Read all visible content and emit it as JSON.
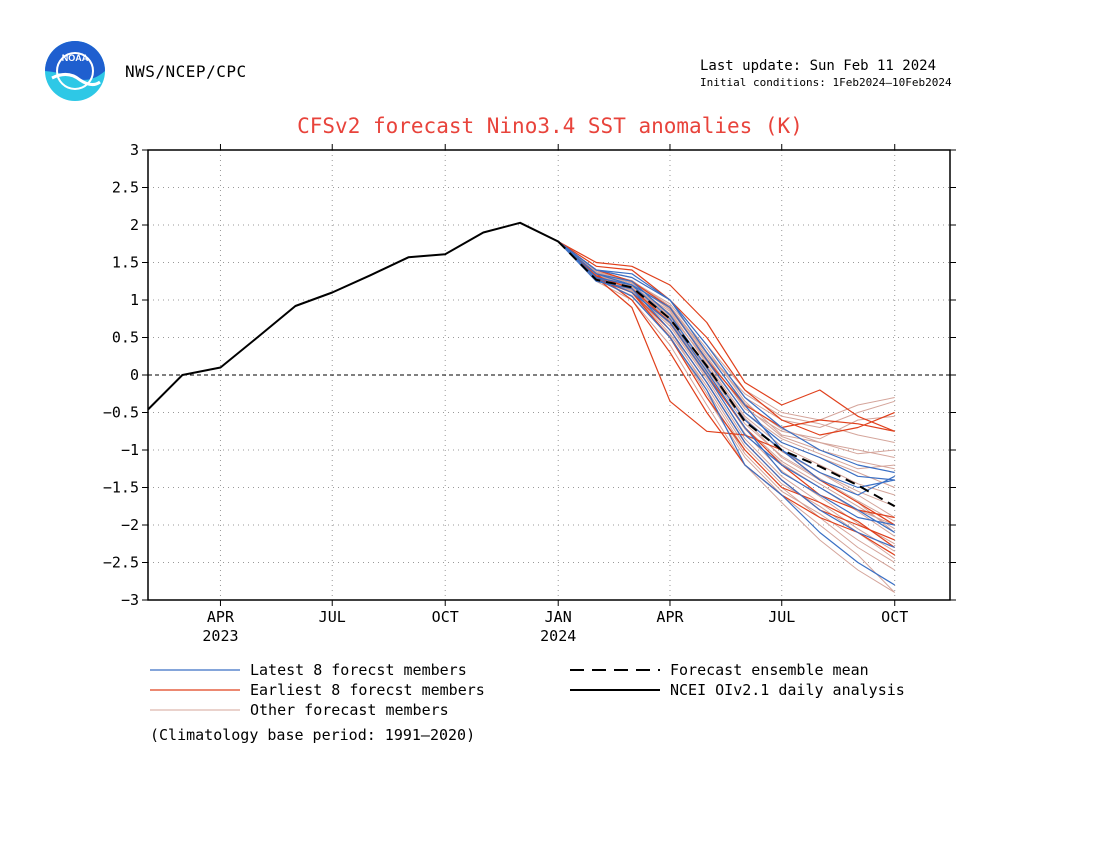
{
  "header": {
    "agency": "NWS/NCEP/CPC",
    "last_update": "Last update: Sun Feb 11 2024",
    "initial_conditions": "Initial conditions: 1Feb2024–10Feb2024",
    "logo_text": "NOAA"
  },
  "footnote": "(Climatology base period: 1991—2020)",
  "colors": {
    "title": "#e8433b",
    "latest": "#3a6fc4",
    "earliest": "#e0401c",
    "other": "#d4a49a",
    "analysis": "#000000",
    "mean": "#000000",
    "logo_blue": "#1f5fcf",
    "logo_cyan": "#2ec8e6"
  },
  "chart_data": {
    "type": "line",
    "title": "CFSv2 forecast Nino3.4 SST anomalies (K)",
    "ylim": [
      -3,
      3
    ],
    "yticks": [
      "3",
      "2.5",
      "2",
      "1.5",
      "1",
      "0.5",
      "0",
      "−0.5",
      "−1",
      "−1.5",
      "−2",
      "−2.5",
      "−3"
    ],
    "ytick_values": [
      3,
      2.5,
      2,
      1.5,
      1,
      0.5,
      0,
      -0.5,
      -1,
      -1.5,
      -2,
      -2.5,
      -3
    ],
    "xlim": [
      "2023-02-01",
      "2024-11-15"
    ],
    "xticks": [
      {
        "date": "2023-04-01",
        "label": "APR",
        "sublabel": "2023"
      },
      {
        "date": "2023-07-01",
        "label": "JUL",
        "sublabel": ""
      },
      {
        "date": "2023-10-01",
        "label": "OCT",
        "sublabel": ""
      },
      {
        "date": "2024-01-01",
        "label": "JAN",
        "sublabel": "2024"
      },
      {
        "date": "2024-04-01",
        "label": "APR",
        "sublabel": ""
      },
      {
        "date": "2024-07-01",
        "label": "JUL",
        "sublabel": ""
      },
      {
        "date": "2024-10-01",
        "label": "OCT",
        "sublabel": ""
      }
    ],
    "grid": true,
    "zero_line": true,
    "legend": [
      {
        "label": "Latest 8 forecst members",
        "style": "latest"
      },
      {
        "label": "Forecast ensemble mean",
        "style": "mean"
      },
      {
        "label": "Earliest 8 forecst members",
        "style": "earliest"
      },
      {
        "label": "NCEI OIv2.1 daily analysis",
        "style": "analysis"
      },
      {
        "label": "Other forecast members",
        "style": "other"
      }
    ],
    "analysis": {
      "name": "NCEI OIv2.1 daily analysis",
      "x": [
        "2023-02-01",
        "2023-03-01",
        "2023-04-01",
        "2023-05-01",
        "2023-06-01",
        "2023-07-01",
        "2023-08-01",
        "2023-09-01",
        "2023-10-01",
        "2023-11-01",
        "2023-12-01",
        "2024-01-01"
      ],
      "y": [
        -0.46,
        0.0,
        0.1,
        0.5,
        0.92,
        1.1,
        1.33,
        1.57,
        1.61,
        1.9,
        2.03,
        1.78
      ]
    },
    "forecast_x": [
      "2024-01-01",
      "2024-02-01",
      "2024-03-01",
      "2024-04-01",
      "2024-05-01",
      "2024-06-01",
      "2024-07-01",
      "2024-08-01",
      "2024-09-01",
      "2024-10-01"
    ],
    "mean": {
      "name": "Forecast ensemble mean",
      "y": [
        1.78,
        1.27,
        1.17,
        0.75,
        0.12,
        -0.62,
        -1.0,
        -1.22,
        -1.47,
        -1.75
      ]
    },
    "latest": [
      [
        1.78,
        1.35,
        1.2,
        0.9,
        0.2,
        -0.5,
        -0.9,
        -1.1,
        -1.35,
        -1.4
      ],
      [
        1.78,
        1.4,
        1.3,
        1.0,
        0.4,
        -0.3,
        -0.7,
        -1.0,
        -1.2,
        -1.3
      ],
      [
        1.78,
        1.3,
        1.1,
        0.7,
        0.0,
        -0.8,
        -1.2,
        -1.5,
        -1.8,
        -2.1
      ],
      [
        1.78,
        1.25,
        1.15,
        0.6,
        -0.1,
        -0.9,
        -1.4,
        -1.8,
        -2.1,
        -2.3
      ],
      [
        1.78,
        1.35,
        1.25,
        0.8,
        0.1,
        -0.6,
        -1.0,
        -1.3,
        -1.5,
        -1.4
      ],
      [
        1.78,
        1.3,
        1.2,
        0.75,
        0.05,
        -0.7,
        -1.3,
        -1.6,
        -1.9,
        -2.0
      ],
      [
        1.78,
        1.28,
        1.05,
        0.5,
        -0.2,
        -1.2,
        -1.6,
        -2.1,
        -2.5,
        -2.8
      ],
      [
        1.78,
        1.4,
        1.35,
        1.0,
        0.3,
        -0.4,
        -1.0,
        -1.4,
        -1.6,
        -1.35
      ]
    ],
    "earliest": [
      [
        1.78,
        1.5,
        1.45,
        1.2,
        0.7,
        -0.1,
        -0.4,
        -0.2,
        -0.55,
        -0.75
      ],
      [
        1.78,
        1.45,
        1.4,
        1.0,
        0.5,
        -0.2,
        -0.6,
        -0.8,
        -0.7,
        -0.5
      ],
      [
        1.78,
        1.3,
        0.9,
        -0.35,
        -0.75,
        -0.8,
        -1.0,
        -1.4,
        -1.7,
        -2.0
      ],
      [
        1.78,
        1.35,
        1.0,
        0.3,
        -0.5,
        -1.2,
        -1.6,
        -1.9,
        -2.1,
        -2.4
      ],
      [
        1.78,
        1.28,
        1.1,
        0.6,
        -0.1,
        -0.9,
        -1.4,
        -1.8,
        -2.0,
        -2.2
      ],
      [
        1.78,
        1.3,
        1.1,
        0.5,
        -0.3,
        -1.0,
        -1.5,
        -1.7,
        -1.95,
        -2.3
      ],
      [
        1.78,
        1.32,
        1.15,
        0.7,
        0.0,
        -0.7,
        -1.2,
        -1.6,
        -1.8,
        -1.9
      ],
      [
        1.78,
        1.4,
        1.25,
        0.9,
        0.2,
        -0.4,
        -0.7,
        -0.6,
        -0.65,
        -0.75
      ]
    ],
    "other": [
      [
        1.78,
        1.35,
        1.2,
        0.8,
        0.1,
        -0.6,
        -1.0,
        -1.3,
        -1.6,
        -1.9
      ],
      [
        1.78,
        1.3,
        1.15,
        0.7,
        0.0,
        -0.8,
        -1.2,
        -1.5,
        -1.8,
        -2.0
      ],
      [
        1.78,
        1.28,
        1.1,
        0.6,
        -0.2,
        -1.0,
        -1.5,
        -1.9,
        -2.3,
        -2.6
      ],
      [
        1.78,
        1.32,
        1.2,
        0.9,
        0.3,
        -0.3,
        -0.6,
        -0.7,
        -0.5,
        -0.35
      ],
      [
        1.78,
        1.4,
        1.3,
        1.0,
        0.4,
        -0.2,
        -0.5,
        -0.6,
        -0.4,
        -0.3
      ],
      [
        1.78,
        1.3,
        1.05,
        0.5,
        -0.3,
        -1.1,
        -1.6,
        -2.0,
        -2.4,
        -2.9
      ],
      [
        1.78,
        1.35,
        1.2,
        0.8,
        0.2,
        -0.5,
        -0.9,
        -1.1,
        -1.3,
        -1.5
      ],
      [
        1.78,
        1.25,
        1.0,
        0.4,
        -0.4,
        -1.2,
        -1.7,
        -2.2,
        -2.6,
        -2.9
      ],
      [
        1.78,
        1.3,
        1.15,
        0.75,
        0.1,
        -0.6,
        -1.1,
        -1.4,
        -1.7,
        -2.1
      ],
      [
        1.78,
        1.38,
        1.25,
        0.95,
        0.35,
        -0.35,
        -0.8,
        -0.9,
        -1.0,
        -1.1
      ],
      [
        1.78,
        1.33,
        1.18,
        0.85,
        0.15,
        -0.55,
        -0.95,
        -1.2,
        -1.45,
        -1.6
      ],
      [
        1.78,
        1.29,
        1.12,
        0.65,
        -0.05,
        -0.85,
        -1.35,
        -1.7,
        -2.05,
        -2.35
      ],
      [
        1.78,
        1.36,
        1.22,
        0.88,
        0.25,
        -0.45,
        -0.75,
        -0.85,
        -0.6,
        -0.55
      ],
      [
        1.78,
        1.31,
        1.1,
        0.55,
        -0.15,
        -0.95,
        -1.45,
        -1.75,
        -2.1,
        -2.45
      ],
      [
        1.78,
        1.34,
        1.2,
        0.82,
        0.18,
        -0.5,
        -0.85,
        -1.05,
        -1.25,
        -1.2
      ],
      [
        1.78,
        1.3,
        1.14,
        0.72,
        0.05,
        -0.7,
        -1.15,
        -1.45,
        -1.75,
        -2.05
      ],
      [
        1.78,
        1.37,
        1.26,
        0.92,
        0.3,
        -0.25,
        -0.55,
        -0.65,
        -0.8,
        -0.9
      ],
      [
        1.78,
        1.27,
        1.06,
        0.52,
        -0.25,
        -1.05,
        -1.55,
        -1.85,
        -2.2,
        -2.5
      ],
      [
        1.78,
        1.33,
        1.19,
        0.78,
        0.12,
        -0.58,
        -1.02,
        -1.3,
        -1.55,
        -1.75
      ],
      [
        1.78,
        1.35,
        1.23,
        0.87,
        0.22,
        -0.42,
        -0.82,
        -1.0,
        -1.15,
        -1.25
      ],
      [
        1.78,
        1.29,
        1.13,
        0.68,
        -0.02,
        -0.78,
        -1.28,
        -1.62,
        -1.98,
        -2.25
      ],
      [
        1.78,
        1.32,
        1.17,
        0.76,
        0.08,
        -0.65,
        -1.08,
        -1.38,
        -1.68,
        -1.95
      ],
      [
        1.78,
        1.36,
        1.24,
        0.9,
        0.28,
        -0.38,
        -0.72,
        -0.9,
        -1.05,
        -1.0
      ],
      [
        1.78,
        1.3,
        1.16,
        0.73,
        0.03,
        -0.72,
        -1.18,
        -1.5,
        -1.82,
        -2.15
      ]
    ]
  }
}
